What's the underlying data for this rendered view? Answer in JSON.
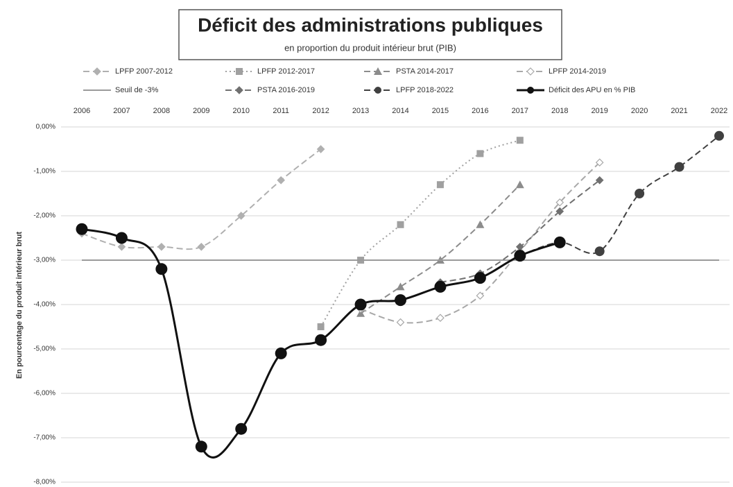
{
  "chart_data": {
    "type": "line",
    "title": "Déficit des administrations publiques",
    "subtitle": "en proportion du produit intérieur brut (PIB)",
    "y_label": "En pourcentage du produit intérieur brut",
    "categories": [
      "2006",
      "2007",
      "2008",
      "2009",
      "2010",
      "2011",
      "2012",
      "2013",
      "2014",
      "2015",
      "2016",
      "2017",
      "2018",
      "2019",
      "2020",
      "2021",
      "2022"
    ],
    "ylim": [
      -8,
      0
    ],
    "yticks": [
      {
        "value": 0,
        "label": "0,00%"
      },
      {
        "value": -1,
        "label": "-1,00%"
      },
      {
        "value": -2,
        "label": "-2,00%"
      },
      {
        "value": -3,
        "label": "-3,00%"
      },
      {
        "value": -4,
        "label": "-4,00%"
      },
      {
        "value": -5,
        "label": "-5,00%"
      },
      {
        "value": -6,
        "label": "-6,00%"
      },
      {
        "value": -7,
        "label": "-7,00%"
      },
      {
        "value": -8,
        "label": "-8,00%"
      }
    ],
    "grid": true,
    "legend": "top",
    "series": [
      {
        "name": "LPFP 2007-2012",
        "color": "#b0b0b0",
        "style": "dashed",
        "marker": "diamond",
        "values": [
          -2.4,
          -2.7,
          -2.7,
          -2.7,
          -2.0,
          -1.2,
          -0.5,
          null,
          null,
          null,
          null,
          null,
          null,
          null,
          null,
          null,
          null
        ]
      },
      {
        "name": "LPFP 2012-2017",
        "color": "#a0a0a0",
        "style": "dotted",
        "marker": "square",
        "values": [
          null,
          null,
          null,
          null,
          null,
          null,
          -4.5,
          -3.0,
          -2.2,
          -1.3,
          -0.6,
          -0.3,
          null,
          null,
          null,
          null,
          null
        ]
      },
      {
        "name": "PSTA 2014-2017",
        "color": "#8c8c8c",
        "style": "dashed",
        "marker": "triangle",
        "values": [
          null,
          null,
          null,
          null,
          null,
          null,
          null,
          -4.2,
          -3.6,
          -3.0,
          -2.2,
          -1.3,
          null,
          null,
          null,
          null,
          null
        ]
      },
      {
        "name": "LPFP 2014-2019",
        "color": "#a8a8a8",
        "style": "dashed",
        "marker": "open-diamond",
        "values": [
          null,
          null,
          null,
          null,
          null,
          null,
          null,
          -4.1,
          -4.4,
          -4.3,
          -3.8,
          -2.8,
          -1.7,
          -0.8,
          null,
          null,
          null
        ]
      },
      {
        "name": "Seuil de -3%",
        "color": "#9a9a9a",
        "style": "solid",
        "marker": "none",
        "values": [
          -3,
          -3,
          -3,
          -3,
          -3,
          -3,
          -3,
          -3,
          -3,
          -3,
          -3,
          -3,
          -3,
          -3,
          -3,
          -3,
          -3
        ]
      },
      {
        "name": "PSTA 2016-2019",
        "color": "#707070",
        "style": "dashed",
        "marker": "diamond",
        "values": [
          null,
          null,
          null,
          null,
          null,
          null,
          null,
          null,
          null,
          -3.5,
          -3.3,
          -2.7,
          -1.9,
          -1.2,
          null,
          null,
          null
        ]
      },
      {
        "name": "LPFP 2018-2022",
        "color": "#404040",
        "style": "dashed",
        "marker": "circle",
        "values": [
          null,
          null,
          null,
          null,
          null,
          null,
          null,
          null,
          null,
          null,
          null,
          -2.9,
          -2.6,
          -2.8,
          -1.5,
          -0.9,
          -0.2
        ]
      },
      {
        "name": "Déficit des APU en % PIB",
        "color": "#111111",
        "style": "solid",
        "marker": "big-circle",
        "values": [
          -2.3,
          -2.5,
          -3.2,
          -7.2,
          -6.8,
          -5.1,
          -4.8,
          -4.0,
          -3.9,
          -3.6,
          -3.4,
          -2.9,
          -2.6,
          null,
          null,
          null,
          null
        ]
      }
    ]
  }
}
